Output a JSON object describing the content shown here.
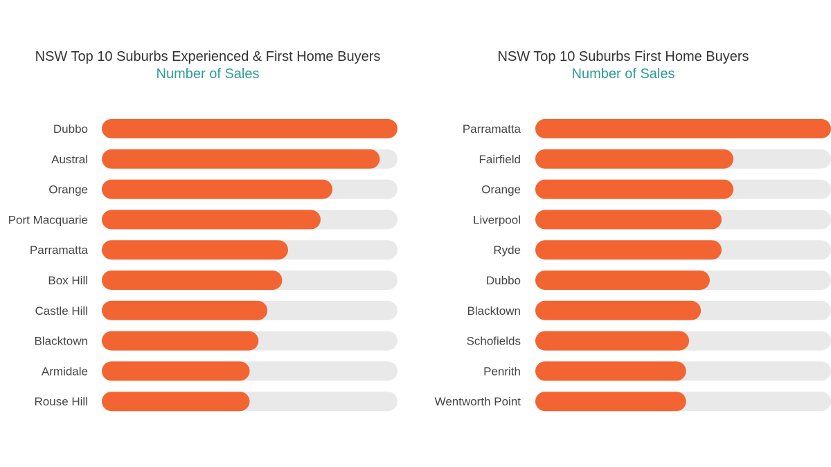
{
  "colors": {
    "bar": "#F26532",
    "track": "#E9E9E9",
    "subtitle": "#2E9C9A",
    "label": "#444444"
  },
  "chart_data": [
    {
      "type": "bar",
      "orientation": "horizontal",
      "title": "NSW Top 10 Suburbs Experienced & First Home Buyers",
      "subtitle": "Number of Sales",
      "categories": [
        "Dubbo",
        "Austral",
        "Orange",
        "Port Macquarie",
        "Parramatta",
        "Box Hill",
        "Castle Hill",
        "Blacktown",
        "Armidale",
        "Rouse Hill"
      ],
      "values": [
        100,
        94,
        78,
        74,
        63,
        61,
        56,
        53,
        50,
        50
      ],
      "xlim": [
        0,
        100
      ],
      "grid": false,
      "legend": "none"
    },
    {
      "type": "bar",
      "orientation": "horizontal",
      "title": "NSW Top 10 Suburbs First Home Buyers",
      "subtitle": "Number of Sales",
      "categories": [
        "Parramatta",
        "Fairfield",
        "Orange",
        "Liverpool",
        "Ryde",
        "Dubbo",
        "Blacktown",
        "Schofields",
        "Penrith",
        "Wentworth Point"
      ],
      "values": [
        100,
        67,
        67,
        63,
        63,
        59,
        56,
        52,
        51,
        51
      ],
      "xlim": [
        0,
        100
      ],
      "grid": false,
      "legend": "none"
    }
  ]
}
